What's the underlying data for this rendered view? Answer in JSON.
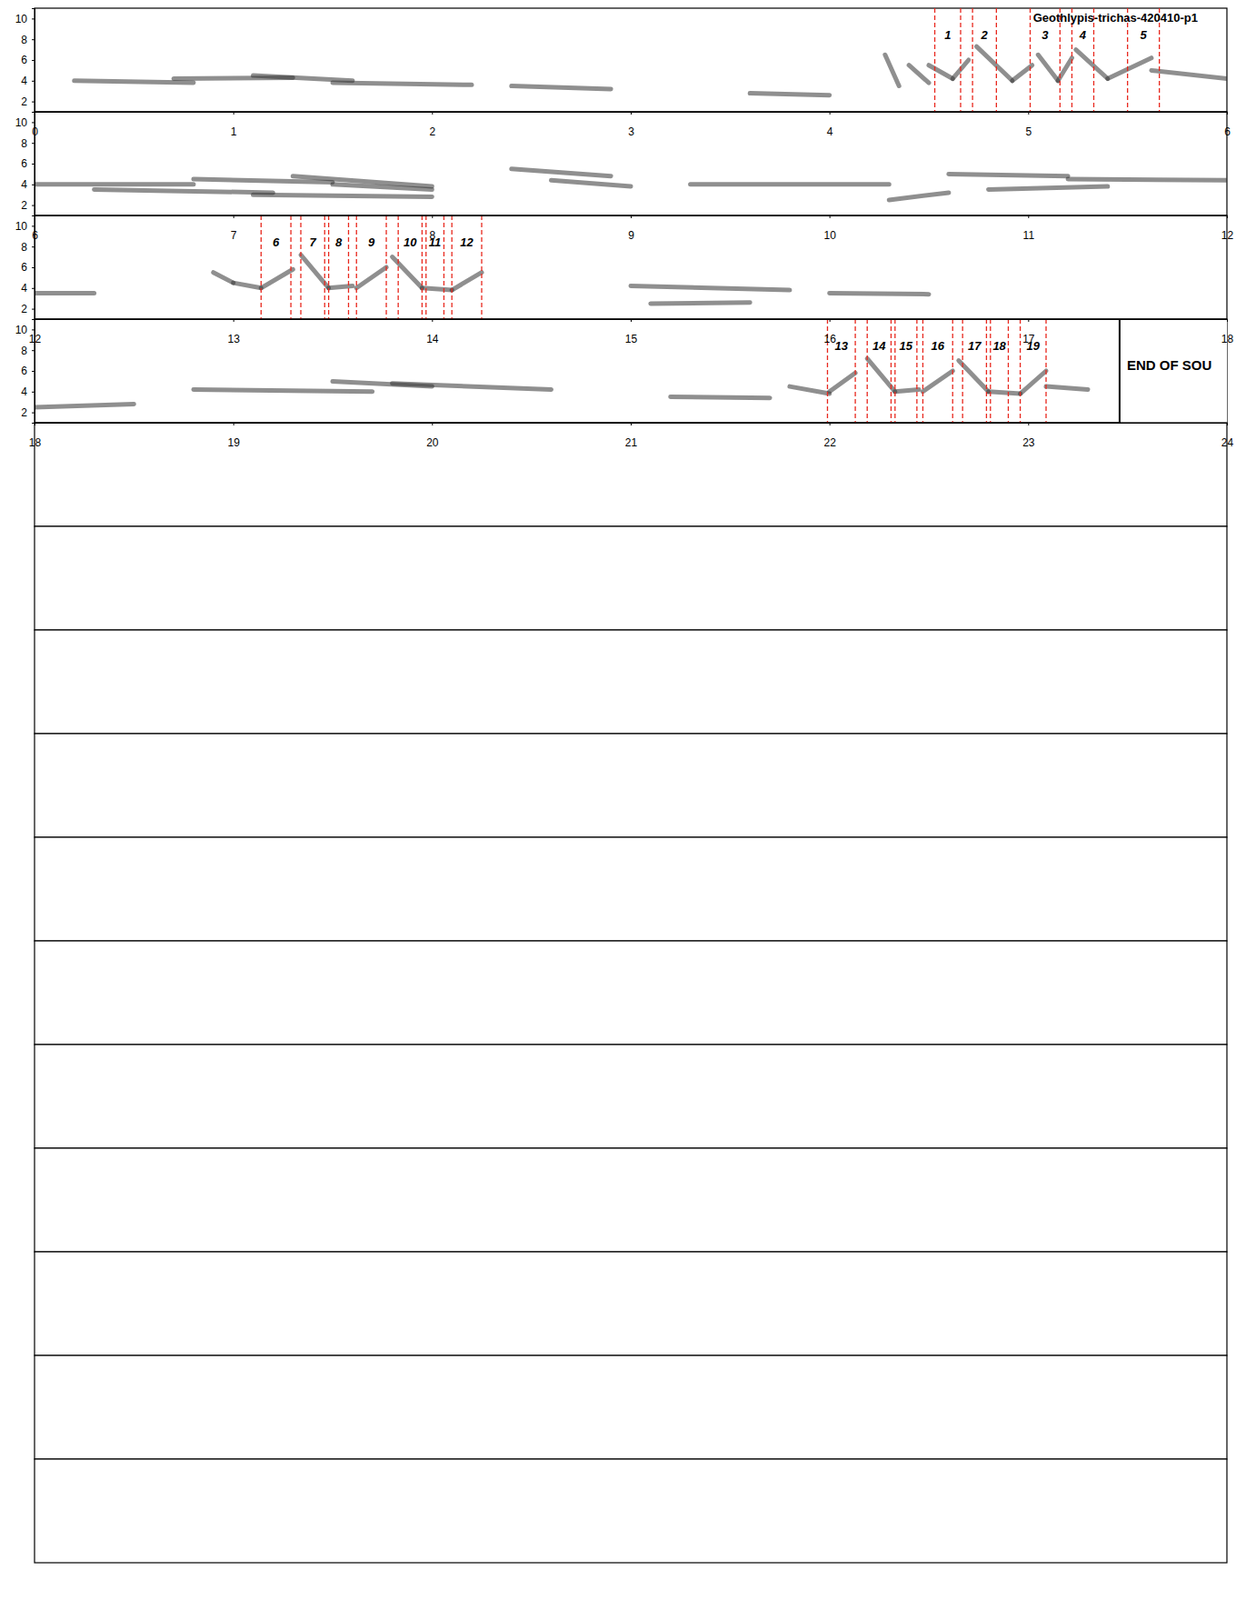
{
  "chart_data": {
    "type": "spectrogram",
    "title": "Geothlypis-trichas-420410-p1",
    "ylim": [
      1,
      11
    ],
    "rows": [
      {
        "xlim": [
          0,
          6
        ],
        "xticks": [
          0,
          1,
          2,
          3,
          4,
          5,
          6
        ],
        "yticks": [
          2,
          4,
          6,
          8,
          10
        ]
      },
      {
        "xlim": [
          6,
          12
        ],
        "xticks": [
          6,
          7,
          8,
          9,
          10,
          11,
          12
        ],
        "yticks": [
          2,
          4,
          6,
          8,
          10
        ]
      },
      {
        "xlim": [
          12,
          18
        ],
        "xticks": [
          12,
          13,
          14,
          15,
          16,
          17,
          18
        ],
        "yticks": [
          2,
          4,
          6,
          8,
          10
        ]
      },
      {
        "xlim": [
          18,
          24
        ],
        "xticks": [
          18,
          19,
          20,
          21,
          22,
          23,
          24
        ],
        "yticks": [
          2,
          4,
          6,
          8,
          10
        ]
      },
      {
        "xlim": [
          24,
          30
        ]
      },
      {
        "xlim": [
          30,
          36
        ]
      },
      {
        "xlim": [
          36,
          42
        ]
      },
      {
        "xlim": [
          42,
          48
        ]
      },
      {
        "xlim": [
          48,
          54
        ]
      },
      {
        "xlim": [
          54,
          60
        ]
      },
      {
        "xlim": [
          60,
          66
        ]
      },
      {
        "xlim": [
          66,
          72
        ]
      },
      {
        "xlim": [
          72,
          78
        ]
      },
      {
        "xlim": [
          78,
          84
        ]
      },
      {
        "xlim": [
          84,
          90
        ]
      }
    ],
    "syllables": [
      {
        "label": 1,
        "start": 4.53,
        "end": 4.66
      },
      {
        "label": 2,
        "start": 4.72,
        "end": 4.84
      },
      {
        "label": 3,
        "start": 5.01,
        "end": 5.16
      },
      {
        "label": 4,
        "start": 5.22,
        "end": 5.33
      },
      {
        "label": 5,
        "start": 5.5,
        "end": 5.66
      },
      {
        "label": 6,
        "start": 13.14,
        "end": 13.29
      },
      {
        "label": 7,
        "start": 13.34,
        "end": 13.46
      },
      {
        "label": 8,
        "start": 13.48,
        "end": 13.58
      },
      {
        "label": 9,
        "start": 13.62,
        "end": 13.77
      },
      {
        "label": 10,
        "start": 13.83,
        "end": 13.95
      },
      {
        "label": 11,
        "start": 13.97,
        "end": 14.06
      },
      {
        "label": 12,
        "start": 14.1,
        "end": 14.25
      },
      {
        "label": 13,
        "start": 21.99,
        "end": 22.13
      },
      {
        "label": 14,
        "start": 22.19,
        "end": 22.31
      },
      {
        "label": 15,
        "start": 22.33,
        "end": 22.44
      },
      {
        "label": 16,
        "start": 22.47,
        "end": 22.62
      },
      {
        "label": 17,
        "start": 22.67,
        "end": 22.79
      },
      {
        "label": 18,
        "start": 22.81,
        "end": 22.9
      },
      {
        "label": 19,
        "start": 22.96,
        "end": 23.09
      }
    ],
    "end_of_sound": {
      "time": 23.46,
      "label": "END OF SOU"
    },
    "energy": [
      {
        "t": [
          0.2,
          0.8
        ],
        "f": [
          4.0,
          3.8
        ]
      },
      {
        "t": [
          0.7,
          1.3
        ],
        "f": [
          4.2,
          4.3
        ]
      },
      {
        "t": [
          1.1,
          1.6
        ],
        "f": [
          4.5,
          4.0
        ]
      },
      {
        "t": [
          1.5,
          2.2
        ],
        "f": [
          3.8,
          3.6
        ]
      },
      {
        "t": [
          2.4,
          2.9
        ],
        "f": [
          3.5,
          3.2
        ]
      },
      {
        "t": [
          3.6,
          4.0
        ],
        "f": [
          2.8,
          2.6
        ]
      },
      {
        "t": [
          4.28,
          4.35
        ],
        "f": [
          6.5,
          3.5
        ]
      },
      {
        "t": [
          4.4,
          4.5
        ],
        "f": [
          5.5,
          3.8
        ]
      },
      {
        "t": [
          4.5,
          4.62
        ],
        "f": [
          5.5,
          4.2
        ]
      },
      {
        "t": [
          4.62,
          4.7
        ],
        "f": [
          4.2,
          6.0
        ]
      },
      {
        "t": [
          4.74,
          4.92
        ],
        "f": [
          7.3,
          4.0
        ]
      },
      {
        "t": [
          4.92,
          5.02
        ],
        "f": [
          4.0,
          5.5
        ]
      },
      {
        "t": [
          5.05,
          5.15
        ],
        "f": [
          6.5,
          4.0
        ]
      },
      {
        "t": [
          5.15,
          5.22
        ],
        "f": [
          4.0,
          6.2
        ]
      },
      {
        "t": [
          5.24,
          5.4
        ],
        "f": [
          7.0,
          4.2
        ]
      },
      {
        "t": [
          5.4,
          5.62
        ],
        "f": [
          4.2,
          6.2
        ]
      },
      {
        "t": [
          5.62,
          6.0
        ],
        "f": [
          5.0,
          4.2
        ]
      },
      {
        "t": [
          6.0,
          6.8
        ],
        "f": [
          4.0,
          4.0
        ]
      },
      {
        "t": [
          6.3,
          7.2
        ],
        "f": [
          3.5,
          3.2
        ]
      },
      {
        "t": [
          6.8,
          7.5
        ],
        "f": [
          4.5,
          4.2
        ]
      },
      {
        "t": [
          7.1,
          8.0
        ],
        "f": [
          3.0,
          2.8
        ]
      },
      {
        "t": [
          7.3,
          8.0
        ],
        "f": [
          4.8,
          3.8
        ]
      },
      {
        "t": [
          7.5,
          8.0
        ],
        "f": [
          4.0,
          3.5
        ]
      },
      {
        "t": [
          8.4,
          8.9
        ],
        "f": [
          5.5,
          4.8
        ]
      },
      {
        "t": [
          8.6,
          9.0
        ],
        "f": [
          4.4,
          3.8
        ]
      },
      {
        "t": [
          9.3,
          10.3
        ],
        "f": [
          4.0,
          4.0
        ]
      },
      {
        "t": [
          10.3,
          10.6
        ],
        "f": [
          2.5,
          3.2
        ]
      },
      {
        "t": [
          10.6,
          11.2
        ],
        "f": [
          5.0,
          4.8
        ]
      },
      {
        "t": [
          10.8,
          11.4
        ],
        "f": [
          3.5,
          3.8
        ]
      },
      {
        "t": [
          11.2,
          12.0
        ],
        "f": [
          4.5,
          4.4
        ]
      },
      {
        "t": [
          12.0,
          12.3
        ],
        "f": [
          3.5,
          3.5
        ]
      },
      {
        "t": [
          12.9,
          13.0
        ],
        "f": [
          5.5,
          4.5
        ]
      },
      {
        "t": [
          13.0,
          13.14
        ],
        "f": [
          4.5,
          4.0
        ]
      },
      {
        "t": [
          13.14,
          13.3
        ],
        "f": [
          4.0,
          5.8
        ]
      },
      {
        "t": [
          13.34,
          13.48
        ],
        "f": [
          7.2,
          4.0
        ]
      },
      {
        "t": [
          13.48,
          13.6
        ],
        "f": [
          4.0,
          4.2
        ]
      },
      {
        "t": [
          13.62,
          13.77
        ],
        "f": [
          4.0,
          6.0
        ]
      },
      {
        "t": [
          13.8,
          13.95
        ],
        "f": [
          7.0,
          4.0
        ]
      },
      {
        "t": [
          13.95,
          14.1
        ],
        "f": [
          4.0,
          3.8
        ]
      },
      {
        "t": [
          14.1,
          14.25
        ],
        "f": [
          3.8,
          5.5
        ]
      },
      {
        "t": [
          15.1,
          15.6
        ],
        "f": [
          2.5,
          2.6
        ]
      },
      {
        "t": [
          15.0,
          15.8
        ],
        "f": [
          4.2,
          3.8
        ]
      },
      {
        "t": [
          16.0,
          16.5
        ],
        "f": [
          3.5,
          3.4
        ]
      },
      {
        "t": [
          18.0,
          18.5
        ],
        "f": [
          2.5,
          2.8
        ]
      },
      {
        "t": [
          18.8,
          19.7
        ],
        "f": [
          4.2,
          4.0
        ]
      },
      {
        "t": [
          19.5,
          20.0
        ],
        "f": [
          5.0,
          4.5
        ]
      },
      {
        "t": [
          19.8,
          20.6
        ],
        "f": [
          4.8,
          4.2
        ]
      },
      {
        "t": [
          21.2,
          21.7
        ],
        "f": [
          3.5,
          3.4
        ]
      },
      {
        "t": [
          21.8,
          22.0
        ],
        "f": [
          4.5,
          3.8
        ]
      },
      {
        "t": [
          22.0,
          22.13
        ],
        "f": [
          4.0,
          5.8
        ]
      },
      {
        "t": [
          22.19,
          22.33
        ],
        "f": [
          7.2,
          4.0
        ]
      },
      {
        "t": [
          22.33,
          22.45
        ],
        "f": [
          4.0,
          4.2
        ]
      },
      {
        "t": [
          22.47,
          22.62
        ],
        "f": [
          4.0,
          6.0
        ]
      },
      {
        "t": [
          22.65,
          22.8
        ],
        "f": [
          7.0,
          4.0
        ]
      },
      {
        "t": [
          22.8,
          22.96
        ],
        "f": [
          4.0,
          3.8
        ]
      },
      {
        "t": [
          22.96,
          23.09
        ],
        "f": [
          3.8,
          6.0
        ]
      },
      {
        "t": [
          23.09,
          23.3
        ],
        "f": [
          4.5,
          4.2
        ]
      }
    ]
  }
}
